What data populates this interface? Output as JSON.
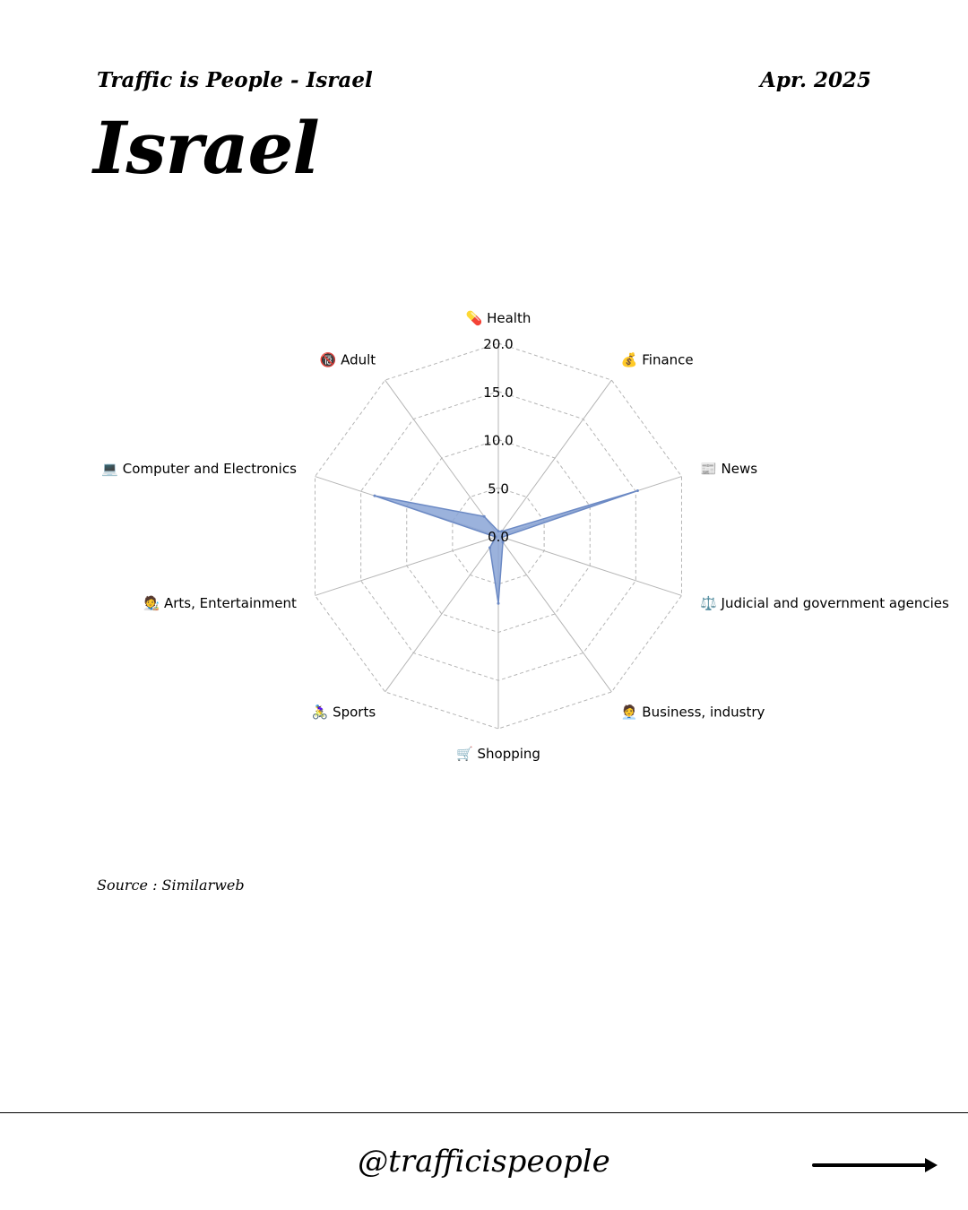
{
  "header": {
    "series": "Traffic is People - Israel",
    "date": "Apr. 2025"
  },
  "page_title": "Israel",
  "source": "Source : Similarweb",
  "footer": {
    "handle": "@trafficispeople"
  },
  "colors": {
    "fill": "#8aa5d6",
    "stroke": "#6b89c4",
    "grid": "#b5b5b5"
  },
  "chart_data": {
    "type": "radar",
    "title": "",
    "categories": [
      "💊 Health",
      "💰 Finance",
      "📰 News",
      "⚖️ Judicial and government agencies",
      "🧑‍💼 Business, industry",
      "🛒 Shopping",
      "🚴‍♀️ Sports",
      "🧑‍🎨 Arts, Entertainment",
      "💻 Computer and Electronics",
      "🔞 Adult"
    ],
    "series": [
      {
        "name": "Israel",
        "values": [
          0.5,
          0.6,
          15.2,
          0.4,
          0.8,
          7.0,
          1.5,
          0.3,
          13.5,
          2.5
        ]
      }
    ],
    "rlim": [
      0,
      20
    ],
    "ticks": [
      0,
      5,
      10,
      15,
      20
    ],
    "tick_labels": [
      "0.0",
      "5.0",
      "10.0",
      "15.0",
      "20.0"
    ],
    "grid": true
  }
}
